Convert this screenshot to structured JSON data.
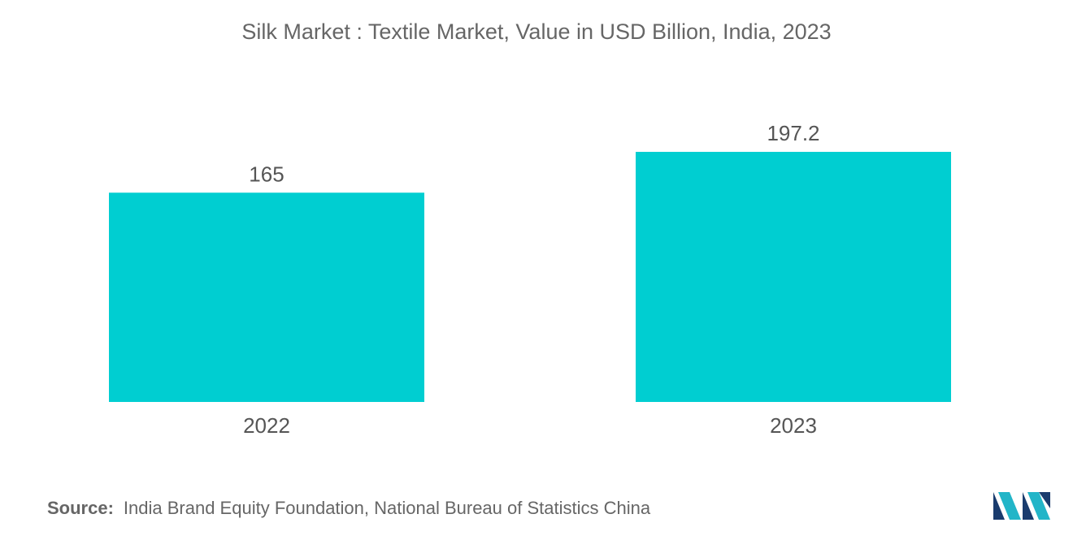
{
  "chart_data": {
    "type": "bar",
    "title": "Silk Market : Textile Market, Value in USD Billion, India, 2023",
    "categories": [
      "2022",
      "2023"
    ],
    "values": [
      165,
      197.2
    ],
    "value_labels": [
      "165",
      "197.2"
    ],
    "xlabel": "",
    "ylabel": "",
    "ylim": [
      0,
      197.2
    ],
    "grid": false,
    "legend": "none",
    "colors": {
      "bar": "#00CED1"
    }
  },
  "source": {
    "label": "Source:",
    "text": "India Brand Equity Foundation, National Bureau of Statistics China"
  },
  "brand": {
    "logo_icon": "mordor-intelligence-logo-icon",
    "colors": [
      "#1a3c6e",
      "#22b5c8"
    ]
  }
}
